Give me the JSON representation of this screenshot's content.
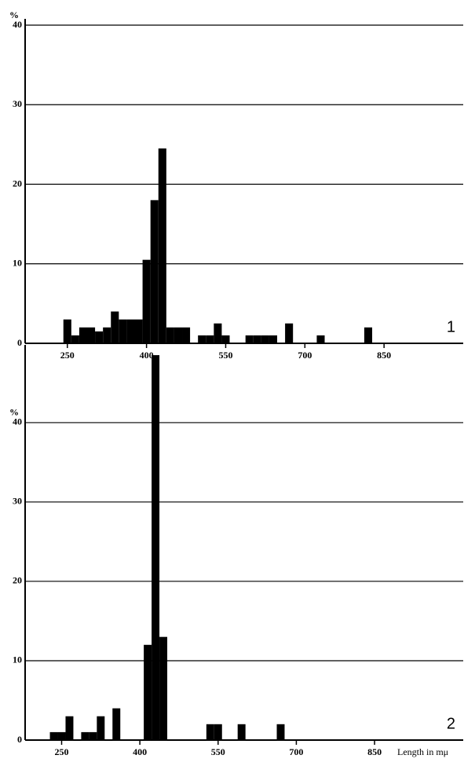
{
  "chart_data": [
    {
      "type": "histogram",
      "y_unit": "%",
      "panel_label": "1",
      "color": "#000000",
      "grid": true,
      "bins": [
        242.5,
        257.5,
        272.5,
        287.5,
        302.5,
        317.5,
        332.5,
        347.5,
        362.5,
        377.5,
        392.5,
        407.5,
        422.5,
        437.5,
        452.5,
        467.5,
        482.5,
        497.5,
        512.5,
        527.5,
        542.5,
        557.5,
        572.5,
        587.5,
        602.5,
        617.5,
        632.5,
        647.5,
        662.5,
        677.5,
        692.5,
        707.5,
        722.5,
        737.5,
        752.5,
        767.5,
        782.5,
        797.5,
        812.5,
        827.5
      ],
      "values": [
        3,
        1,
        2,
        2,
        1.5,
        2,
        4,
        3,
        3,
        3,
        10.5,
        18,
        24.5,
        2,
        2,
        2,
        0,
        1,
        1,
        2.5,
        1,
        0,
        0,
        1,
        1,
        1,
        1,
        0,
        2.5,
        0,
        0,
        0,
        1,
        0,
        0,
        0,
        0,
        0,
        2
      ],
      "xlim": [
        170,
        1000
      ],
      "xticks": [
        250,
        400,
        550,
        700,
        850
      ],
      "ylim": [
        0,
        40
      ],
      "yticks": [
        0,
        10,
        20,
        30,
        40
      ]
    },
    {
      "type": "histogram",
      "y_unit": "%",
      "panel_label": "2",
      "xlabel": "Length in mμ",
      "color": "#000000",
      "grid": true,
      "bins": [
        227.5,
        242.5,
        257.5,
        272.5,
        287.5,
        302.5,
        317.5,
        332.5,
        347.5,
        362.5,
        377.5,
        392.5,
        407.5,
        422.5,
        437.5,
        452.5,
        467.5,
        482.5,
        497.5,
        512.5,
        527.5,
        542.5,
        557.5,
        572.5,
        587.5,
        602.5,
        617.5,
        632.5,
        647.5,
        662.5,
        677.5
      ],
      "values": [
        1,
        1,
        3,
        0,
        1,
        1,
        3,
        0,
        4,
        0,
        0,
        0,
        12,
        48.5,
        13,
        0,
        0,
        0,
        0,
        0,
        2,
        2,
        0,
        0,
        2,
        0,
        0,
        0,
        0,
        2
      ],
      "xlim": [
        180,
        1020
      ],
      "xticks": [
        250,
        400,
        550,
        700,
        850
      ],
      "ylim": [
        0,
        49
      ],
      "yticks": [
        0,
        10,
        20,
        30,
        40
      ]
    }
  ]
}
